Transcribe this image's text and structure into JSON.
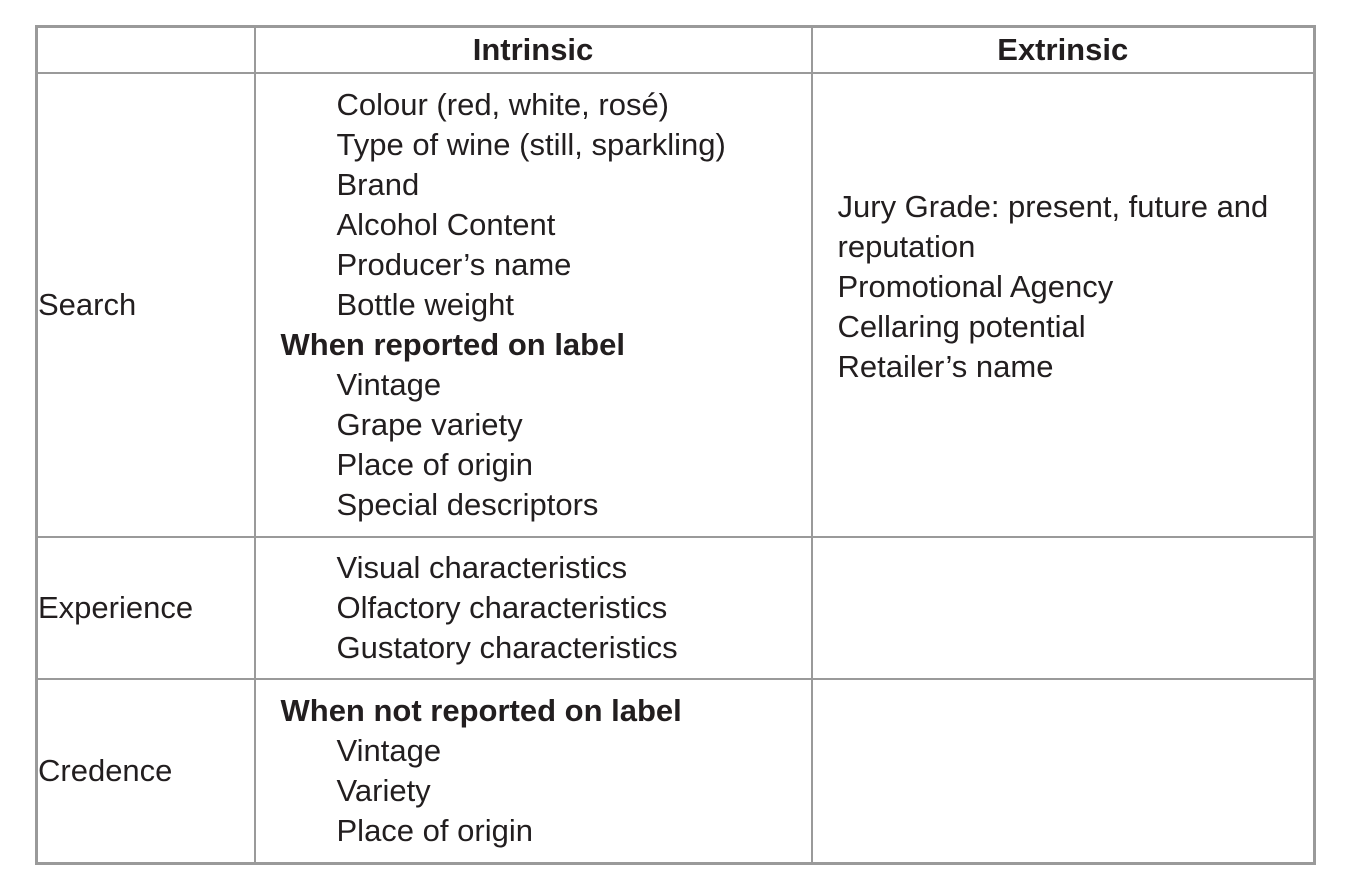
{
  "colors": {
    "border": "#9a9a9a",
    "text": "#221e1f",
    "background": "#ffffff"
  },
  "header": {
    "blank": "",
    "intrinsic": "Intrinsic",
    "extrinsic": "Extrinsic"
  },
  "rows": {
    "search": {
      "label": "Search",
      "intrinsic": [
        "Colour (red, white, rosé)",
        "Type of wine (still, sparkling)",
        "Brand",
        "Alcohol Content",
        "Producer’s name",
        "Bottle weight",
        "When reported on label",
        "Vintage",
        "Grape variety",
        "Place of origin",
        "Special descriptors"
      ],
      "extrinsic": [
        "Jury Grade: present, future and reputation",
        "Promotional Agency",
        "Cellaring potential",
        "Retailer’s name"
      ]
    },
    "experience": {
      "label": "Experience",
      "intrinsic": [
        "Visual characteristics",
        "Olfactory characteristics",
        "Gustatory characteristics"
      ],
      "extrinsic": []
    },
    "credence": {
      "label": "Credence",
      "intrinsic": [
        "When not reported on label",
        "Vintage",
        "Variety",
        "Place of origin"
      ],
      "extrinsic": []
    }
  }
}
